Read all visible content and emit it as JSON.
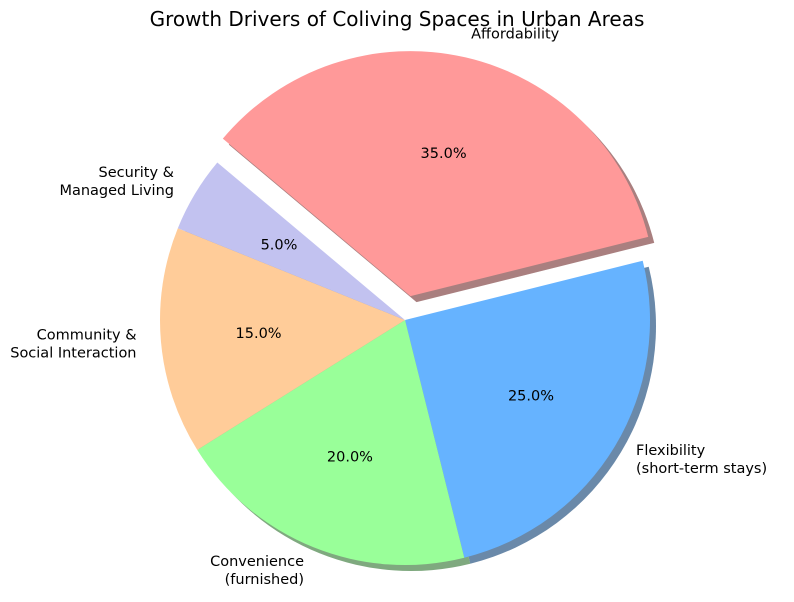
{
  "chart_data": {
    "type": "pie",
    "title": "Growth Drivers of Coliving Spaces in Urban Areas",
    "start_angle_deg": 140,
    "direction": "clockwise",
    "shadow": true,
    "slices": [
      {
        "label": "Affordability",
        "value": 35.0,
        "pct_label": "35.0%",
        "color": "#ff9999",
        "explode": true
      },
      {
        "label": "Flexibility\n(short-term stays)",
        "value": 25.0,
        "pct_label": "25.0%",
        "color": "#66b3ff",
        "explode": false
      },
      {
        "label": "Convenience\n(furnished)",
        "value": 20.0,
        "pct_label": "20.0%",
        "color": "#99ff99",
        "explode": false
      },
      {
        "label": "Community &\nSocial Interaction",
        "value": 15.0,
        "pct_label": "15.0%",
        "color": "#ffcc99",
        "explode": false
      },
      {
        "label": "Security &\nManaged Living",
        "value": 5.0,
        "pct_label": "5.0%",
        "color": "#c2c2f0",
        "explode": false
      }
    ]
  }
}
